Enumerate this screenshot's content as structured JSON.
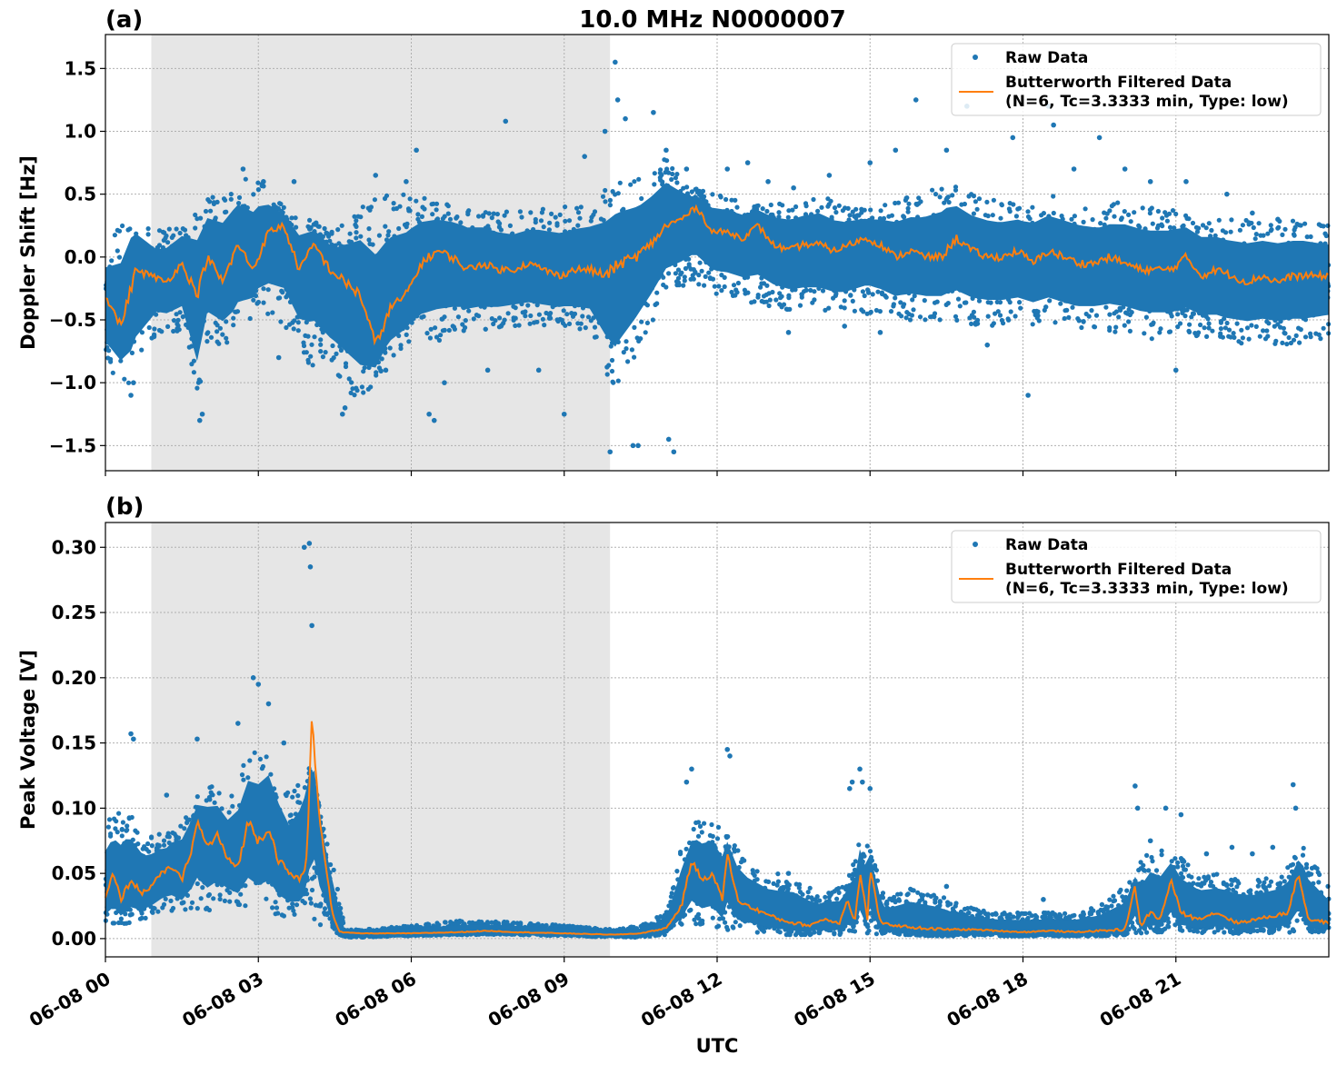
{
  "figure": {
    "title": "10.0 MHz N0000007",
    "xlabel": "UTC",
    "x_tick_labels": [
      "06-08 00",
      "06-08 03",
      "06-08 06",
      "06-08 09",
      "06-08 12",
      "06-08 15",
      "06-08 18",
      "06-08 21"
    ],
    "night_shading_hours": [
      0.9,
      9.9
    ],
    "colors": {
      "raw": "#1f77b4",
      "filtered": "#ff7f0e",
      "shade": "#e6e6e6",
      "grid": "#b0b0b0"
    }
  },
  "legend": {
    "raw_label": "Raw Data",
    "filtered_label_line1": "Butterworth Filtered Data",
    "filtered_label_line2": "(N=6, Tc=3.3333 min, Type: low)"
  },
  "chart_data": [
    {
      "panel_label": "(a)",
      "type": "scatter",
      "ylabel": "Doppler Shift [Hz]",
      "xlim_hours": [
        0,
        24
      ],
      "ylim": [
        -1.7,
        1.77
      ],
      "y_ticks": [
        -1.5,
        -1.0,
        -0.5,
        0.0,
        0.5,
        1.0,
        1.5
      ],
      "y_tick_labels": [
        "−1.5",
        "−1.0",
        "−0.5",
        "0.0",
        "0.5",
        "1.0",
        "1.5"
      ],
      "series": [
        {
          "name": "Raw Data (envelope)",
          "x_hours": [
            0,
            0.5,
            1,
            1.5,
            1.8,
            2,
            2.5,
            3,
            3.5,
            4,
            4.5,
            5,
            5.5,
            6,
            6.5,
            7,
            7.5,
            8,
            8.5,
            9,
            9.5,
            10,
            10.5,
            11,
            11.5,
            12,
            12.5,
            13,
            13.5,
            14,
            14.5,
            15,
            15.5,
            16,
            16.5,
            17,
            17.5,
            18,
            18.5,
            19,
            19.5,
            20,
            20.5,
            21,
            21.5,
            22,
            22.5,
            23,
            23.5,
            24
          ],
          "upper": [
            0.05,
            0.4,
            0.2,
            0.3,
            0.4,
            0.5,
            0.6,
            0.65,
            0.4,
            0.3,
            0.2,
            0.4,
            0.5,
            0.5,
            0.45,
            0.45,
            0.4,
            0.35,
            0.4,
            0.4,
            0.45,
            0.6,
            0.65,
            0.8,
            0.55,
            0.5,
            0.45,
            0.45,
            0.45,
            0.5,
            0.4,
            0.4,
            0.45,
            0.5,
            0.6,
            0.5,
            0.45,
            0.45,
            0.5,
            0.45,
            0.4,
            0.45,
            0.4,
            0.4,
            0.35,
            0.3,
            0.3,
            0.3,
            0.3,
            0.25
          ],
          "lower": [
            -0.9,
            -1.05,
            -0.6,
            -0.6,
            -1.15,
            -0.7,
            -0.7,
            -0.4,
            -0.55,
            -0.85,
            -1.0,
            -1.2,
            -0.85,
            -0.7,
            -0.7,
            -0.6,
            -0.6,
            -0.55,
            -0.55,
            -0.55,
            -0.6,
            -1.1,
            -0.7,
            -0.3,
            -0.2,
            -0.3,
            -0.35,
            -0.4,
            -0.45,
            -0.45,
            -0.5,
            -0.45,
            -0.5,
            -0.5,
            -0.5,
            -0.55,
            -0.55,
            -0.55,
            -0.55,
            -0.6,
            -0.6,
            -0.6,
            -0.65,
            -0.65,
            -0.65,
            -0.7,
            -0.7,
            -0.7,
            -0.7,
            -0.65
          ]
        },
        {
          "name": "Butterworth Filtered Data",
          "x_hours": [
            0,
            0.3,
            0.6,
            0.9,
            1.2,
            1.5,
            1.8,
            2,
            2.3,
            2.6,
            2.9,
            3.2,
            3.5,
            3.8,
            4.1,
            4.4,
            4.7,
            5,
            5.3,
            5.6,
            5.9,
            6.2,
            6.5,
            6.8,
            7.1,
            7.4,
            7.7,
            8,
            8.3,
            8.6,
            8.9,
            9.2,
            9.5,
            9.8,
            10.1,
            10.4,
            10.7,
            11,
            11.3,
            11.6,
            11.9,
            12.2,
            12.5,
            12.8,
            13.1,
            13.4,
            13.7,
            14,
            14.3,
            14.6,
            14.9,
            15.2,
            15.5,
            15.8,
            16.1,
            16.4,
            16.7,
            17,
            17.3,
            17.6,
            17.9,
            18.2,
            18.5,
            18.8,
            19.1,
            19.4,
            19.7,
            20,
            20.3,
            20.6,
            20.9,
            21.2,
            21.5,
            21.8,
            22.1,
            22.4,
            22.7,
            23,
            23.3,
            23.6,
            24
          ],
          "y": [
            -0.3,
            -0.55,
            -0.1,
            -0.15,
            -0.2,
            -0.05,
            -0.3,
            0.0,
            -0.2,
            0.1,
            -0.1,
            0.2,
            0.25,
            -0.1,
            0.1,
            -0.1,
            -0.2,
            -0.3,
            -0.7,
            -0.4,
            -0.3,
            -0.05,
            0.05,
            0.0,
            -0.1,
            -0.05,
            -0.1,
            -0.1,
            -0.05,
            -0.1,
            -0.15,
            -0.1,
            -0.1,
            -0.15,
            -0.05,
            0.0,
            0.1,
            0.25,
            0.3,
            0.4,
            0.2,
            0.2,
            0.15,
            0.25,
            0.1,
            0.05,
            0.1,
            0.1,
            0.05,
            0.1,
            0.15,
            0.1,
            0.0,
            0.05,
            0.0,
            0.0,
            0.15,
            0.05,
            0.0,
            0.0,
            0.05,
            -0.05,
            0.05,
            0.0,
            -0.05,
            -0.05,
            0.0,
            -0.05,
            -0.1,
            -0.1,
            -0.1,
            0.0,
            -0.15,
            -0.1,
            -0.15,
            -0.2,
            -0.15,
            -0.2,
            -0.15,
            -0.15,
            -0.15
          ]
        }
      ],
      "outliers": {
        "x_hours": [
          0.5,
          0.55,
          1.85,
          1.9,
          2.7,
          3.1,
          3.4,
          3.7,
          4.65,
          4.7,
          5.3,
          5.5,
          5.9,
          6.1,
          6.35,
          6.45,
          6.65,
          7.5,
          7.85,
          8.5,
          9.0,
          9.4,
          9.8,
          9.9,
          10.0,
          10.05,
          10.2,
          10.35,
          10.45,
          10.75,
          11.0,
          11.05,
          11.15,
          11.4,
          12.2,
          12.6,
          13.0,
          13.4,
          13.5,
          14.2,
          14.5,
          15.0,
          15.2,
          15.5,
          15.9,
          16.5,
          16.9,
          17.3,
          17.8,
          18.1,
          18.5,
          18.6,
          19.0,
          19.5,
          20.0,
          20.5,
          21.0,
          21.2,
          22.0,
          22.5,
          23.0
        ],
        "y": [
          -1.1,
          -1.0,
          -1.3,
          -1.25,
          0.7,
          0.6,
          -0.8,
          0.6,
          -1.25,
          -1.2,
          0.65,
          -0.9,
          0.6,
          0.85,
          -1.25,
          -1.3,
          -1.0,
          -0.9,
          1.08,
          -0.9,
          -1.25,
          0.8,
          1.0,
          -1.55,
          1.55,
          1.25,
          1.1,
          -1.5,
          -1.5,
          1.15,
          0.85,
          -1.45,
          -1.55,
          0.7,
          0.7,
          0.75,
          0.6,
          -0.6,
          0.55,
          0.65,
          -0.55,
          0.75,
          -0.6,
          0.85,
          1.25,
          0.85,
          1.2,
          -0.7,
          0.95,
          -1.1,
          1.2,
          1.05,
          0.7,
          0.95,
          0.7,
          0.6,
          -0.9,
          0.6,
          0.5,
          0.35,
          0.3
        ]
      }
    },
    {
      "panel_label": "(b)",
      "type": "scatter",
      "ylabel": "Peak Voltage [V]",
      "xlim_hours": [
        0,
        24
      ],
      "ylim": [
        -0.014,
        0.319
      ],
      "y_ticks": [
        0.0,
        0.05,
        0.1,
        0.15,
        0.2,
        0.25,
        0.3
      ],
      "y_tick_labels": [
        "0.00",
        "0.05",
        "0.10",
        "0.15",
        "0.20",
        "0.25",
        "0.30"
      ],
      "series": [
        {
          "name": "Raw Data (envelope)",
          "x_hours": [
            0,
            0.4,
            0.8,
            1.2,
            1.6,
            2.0,
            2.4,
            2.8,
            3.2,
            3.6,
            3.9,
            4.1,
            4.3,
            4.5,
            4.7,
            5.0,
            6.0,
            7.0,
            8.0,
            9.0,
            10.0,
            10.5,
            11.0,
            11.3,
            11.6,
            11.9,
            12.2,
            12.6,
            13.0,
            13.5,
            14.0,
            14.5,
            14.8,
            15.0,
            15.3,
            15.8,
            16.3,
            16.8,
            17.5,
            18.0,
            18.5,
            19.0,
            19.5,
            20.0,
            20.5,
            21.0,
            21.5,
            22.0,
            22.5,
            23.0,
            23.5,
            24
          ],
          "upper": [
            0.09,
            0.1,
            0.08,
            0.08,
            0.1,
            0.12,
            0.11,
            0.14,
            0.15,
            0.11,
            0.14,
            0.12,
            0.08,
            0.05,
            0.007,
            0.007,
            0.01,
            0.014,
            0.013,
            0.01,
            0.007,
            0.01,
            0.02,
            0.07,
            0.09,
            0.09,
            0.08,
            0.06,
            0.05,
            0.05,
            0.035,
            0.04,
            0.08,
            0.07,
            0.03,
            0.04,
            0.035,
            0.025,
            0.02,
            0.02,
            0.02,
            0.02,
            0.025,
            0.04,
            0.07,
            0.065,
            0.05,
            0.05,
            0.045,
            0.05,
            0.07,
            0.04
          ],
          "lower": [
            0.01,
            0.01,
            0.015,
            0.02,
            0.02,
            0.02,
            0.025,
            0.02,
            0.02,
            0.015,
            0.02,
            0.01,
            0.01,
            0.005,
            0.001,
            0.001,
            0.002,
            0.003,
            0.003,
            0.002,
            0.001,
            0.001,
            0.003,
            0.01,
            0.01,
            0.01,
            0.005,
            0.005,
            0.003,
            0.003,
            0.003,
            0.003,
            0.005,
            0.004,
            0.003,
            0.003,
            0.002,
            0.002,
            0.002,
            0.002,
            0.002,
            0.002,
            0.002,
            0.003,
            0.005,
            0.005,
            0.004,
            0.004,
            0.004,
            0.004,
            0.005,
            0.005
          ]
        },
        {
          "name": "Butterworth Filtered Data",
          "x_hours": [
            0,
            0.15,
            0.3,
            0.5,
            0.7,
            0.9,
            1.1,
            1.3,
            1.5,
            1.7,
            1.8,
            2.0,
            2.2,
            2.4,
            2.6,
            2.8,
            3.0,
            3.2,
            3.4,
            3.6,
            3.8,
            3.95,
            4.05,
            4.2,
            4.35,
            4.45,
            4.6,
            5.0,
            6.0,
            7.0,
            7.5,
            8.0,
            9.0,
            10.0,
            10.5,
            11.0,
            11.3,
            11.5,
            11.7,
            11.9,
            12.1,
            12.2,
            12.4,
            12.6,
            12.9,
            13.2,
            13.5,
            13.8,
            14.1,
            14.4,
            14.55,
            14.7,
            14.8,
            14.95,
            15.0,
            15.2,
            15.5,
            16.0,
            16.5,
            17.0,
            17.5,
            18.0,
            18.5,
            19.0,
            19.5,
            20.0,
            20.2,
            20.3,
            20.5,
            20.7,
            20.9,
            21.1,
            21.4,
            21.8,
            22.2,
            22.6,
            23.0,
            23.2,
            23.4,
            23.6,
            24
          ],
          "y": [
            0.03,
            0.05,
            0.03,
            0.045,
            0.035,
            0.04,
            0.05,
            0.055,
            0.045,
            0.07,
            0.09,
            0.07,
            0.08,
            0.06,
            0.055,
            0.09,
            0.075,
            0.085,
            0.06,
            0.05,
            0.045,
            0.06,
            0.17,
            0.09,
            0.05,
            0.02,
            0.005,
            0.004,
            0.004,
            0.005,
            0.006,
            0.005,
            0.004,
            0.003,
            0.004,
            0.008,
            0.025,
            0.06,
            0.045,
            0.05,
            0.03,
            0.065,
            0.03,
            0.025,
            0.02,
            0.015,
            0.012,
            0.01,
            0.015,
            0.012,
            0.03,
            0.012,
            0.05,
            0.015,
            0.055,
            0.012,
            0.01,
            0.008,
            0.007,
            0.007,
            0.006,
            0.005,
            0.006,
            0.005,
            0.006,
            0.007,
            0.04,
            0.01,
            0.02,
            0.015,
            0.045,
            0.02,
            0.015,
            0.02,
            0.012,
            0.015,
            0.018,
            0.02,
            0.05,
            0.015,
            0.012
          ]
        }
      ],
      "outliers": {
        "x_hours": [
          0.5,
          0.55,
          1.2,
          1.8,
          2.6,
          2.9,
          3.0,
          3.2,
          3.5,
          3.9,
          4.0,
          4.02,
          4.05,
          11.4,
          11.5,
          12.2,
          12.25,
          13.4,
          14.6,
          14.65,
          14.8,
          14.85,
          15.0,
          16.5,
          18.4,
          20.2,
          20.25,
          20.5,
          20.8,
          21.1,
          21.6,
          22.1,
          22.5,
          22.9,
          23.3,
          23.35
        ],
        "y": [
          0.157,
          0.153,
          0.11,
          0.153,
          0.165,
          0.2,
          0.195,
          0.18,
          0.15,
          0.3,
          0.303,
          0.285,
          0.24,
          0.12,
          0.13,
          0.145,
          0.14,
          0.05,
          0.115,
          0.12,
          0.13,
          0.12,
          0.115,
          0.04,
          0.03,
          0.117,
          0.1,
          0.075,
          0.1,
          0.095,
          0.065,
          0.07,
          0.065,
          0.07,
          0.118,
          0.1
        ]
      }
    }
  ]
}
